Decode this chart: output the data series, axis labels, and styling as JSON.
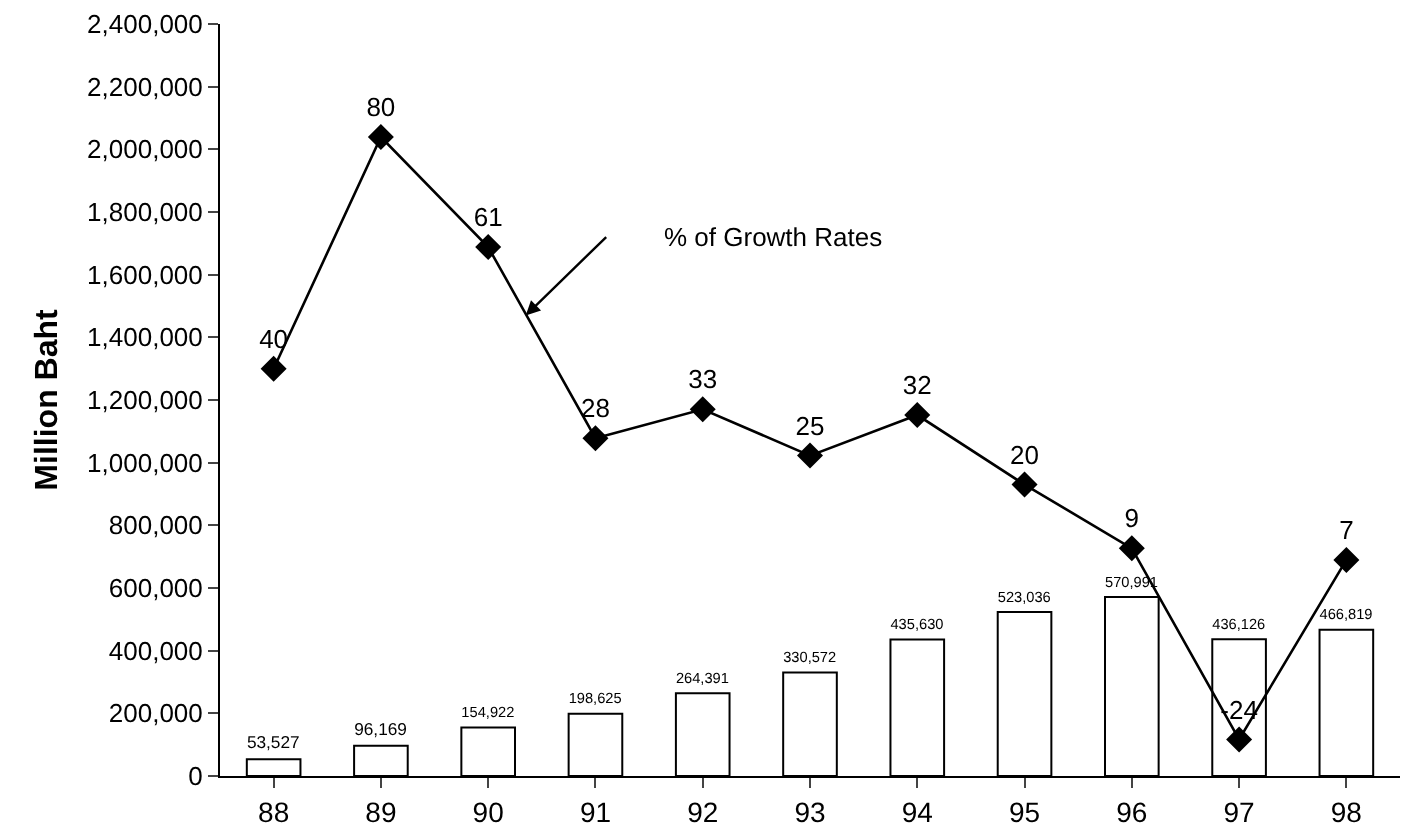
{
  "chart_data": {
    "type": "bar",
    "ylabel": "Million Baht",
    "categories": [
      "88",
      "89",
      "90",
      "91",
      "92",
      "93",
      "94",
      "95",
      "96",
      "97",
      "98"
    ],
    "series": [
      {
        "color": "#ffffff",
        "values": [
          53527,
          96169,
          154922,
          198625,
          264391,
          330572,
          435630,
          523036,
          570991,
          436126,
          466819
        ],
        "value_labels": [
          "53,527",
          "96,169",
          "154,922",
          "198,625",
          "264,391",
          "330,572",
          "435,630",
          "523,036",
          "570,991",
          "436,126",
          "466,819"
        ]
      },
      {
        "type": "line",
        "axis": "y2",
        "color": "#000000",
        "marker": "diamond",
        "line_style": "solid",
        "values": [
          40,
          80,
          61,
          28,
          33,
          25,
          32,
          20,
          9,
          -24,
          7
        ]
      }
    ],
    "ylim": [
      0,
      2400000
    ],
    "yticks": [
      {
        "value": 0,
        "label": "0"
      },
      {
        "value": 200000,
        "label": "200,000"
      },
      {
        "value": 400000,
        "label": "400,000"
      },
      {
        "value": 600000,
        "label": "600,000"
      },
      {
        "value": 800000,
        "label": "800,000"
      },
      {
        "value": 1000000,
        "label": "1,000,000"
      },
      {
        "value": 1200000,
        "label": "1,200,000"
      },
      {
        "value": 1400000,
        "label": "1,400,000"
      },
      {
        "value": 1600000,
        "label": "1,600,000"
      },
      {
        "value": 1800000,
        "label": "1,800,000"
      },
      {
        "value": 2000000,
        "label": "2,000,000"
      },
      {
        "value": 2200000,
        "label": "2,200,000"
      },
      {
        "value": 2400000,
        "label": "2,400,000"
      }
    ],
    "y2lim": [
      -30.3,
      99.5
    ],
    "data_labels": true,
    "grid": false,
    "annotations": [
      "% of Growth Rates"
    ]
  }
}
